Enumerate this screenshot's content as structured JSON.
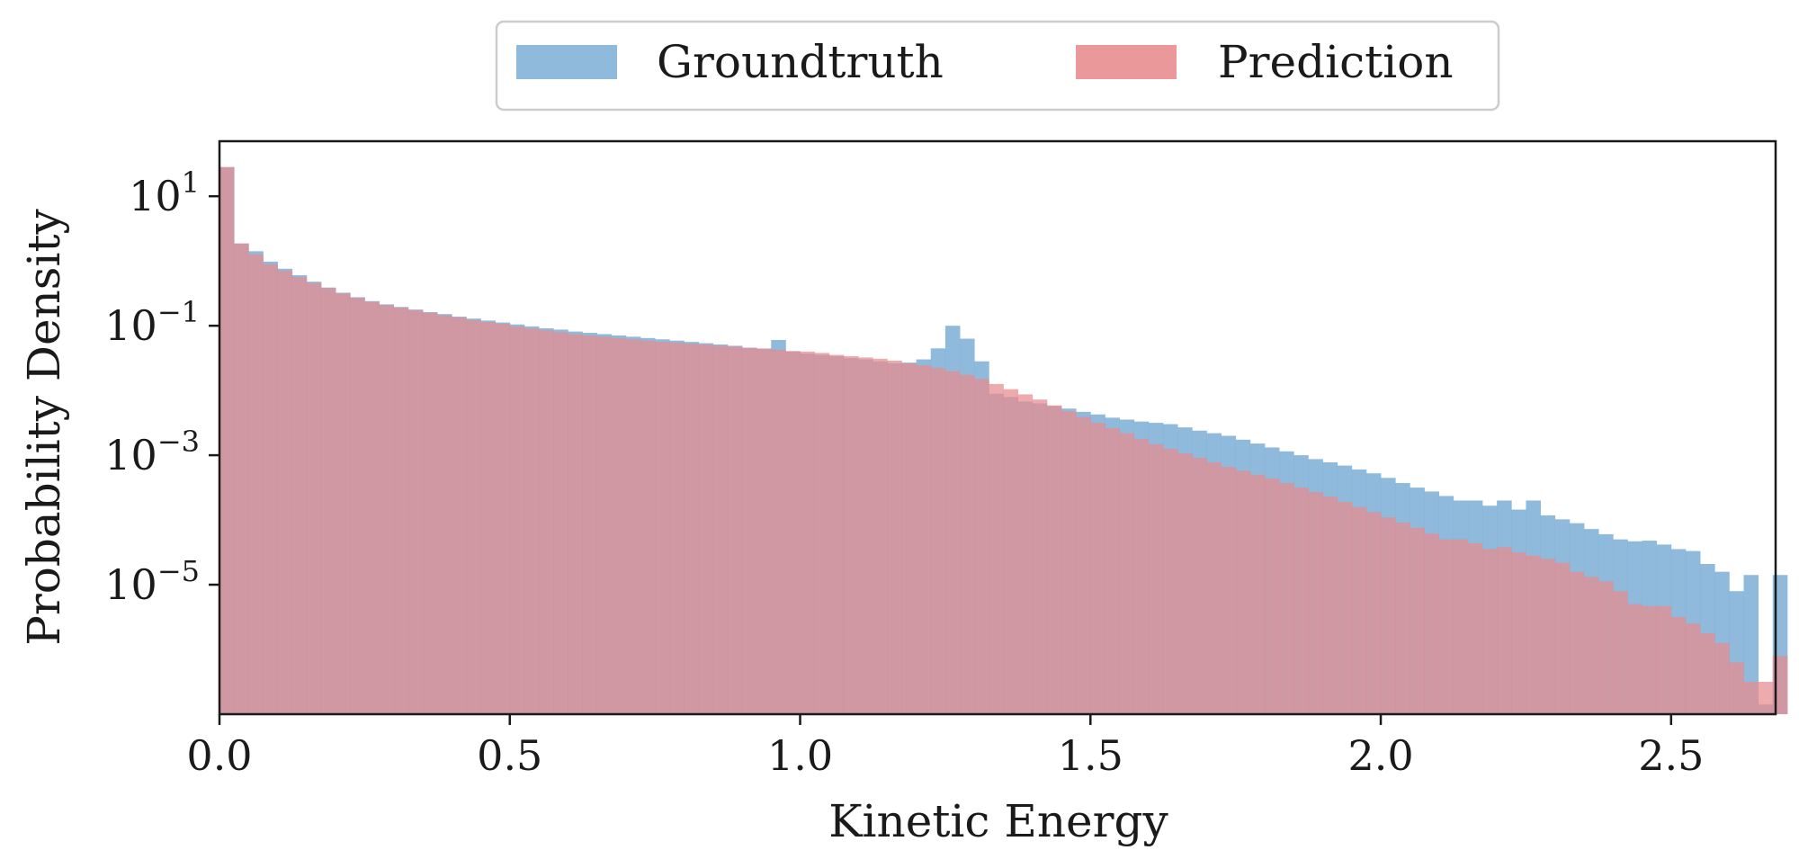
{
  "chart_data": {
    "type": "bar",
    "histogram": true,
    "x_start": 0.0,
    "bin_width": 0.025,
    "xlabel": "Kinetic Energy",
    "ylabel": "Probability Density",
    "xlim": [
      0.0,
      2.68
    ],
    "ylim_log10": [
      -7.0,
      1.85
    ],
    "yscale": "log",
    "x_ticks": [
      {
        "value": 0.0,
        "label": "0.0"
      },
      {
        "value": 0.5,
        "label": "0.5"
      },
      {
        "value": 1.0,
        "label": "1.0"
      },
      {
        "value": 1.5,
        "label": "1.5"
      },
      {
        "value": 2.0,
        "label": "2.0"
      },
      {
        "value": 2.5,
        "label": "2.5"
      }
    ],
    "y_ticks": [
      {
        "log10": 1,
        "base": "10",
        "exp": "1"
      },
      {
        "log10": -1,
        "base": "10",
        "exp": "−1"
      },
      {
        "log10": -3,
        "base": "10",
        "exp": "−3"
      },
      {
        "log10": -5,
        "base": "10",
        "exp": "−5"
      }
    ],
    "grid": false,
    "legend_position": "top-center",
    "series": [
      {
        "name": "Groundtruth",
        "color": "#7fb1d6",
        "opacity": 0.88,
        "log10_values": [
          1.45,
          0.27,
          0.15,
          -0.01,
          -0.12,
          -0.22,
          -0.32,
          -0.41,
          -0.49,
          -0.56,
          -0.62,
          -0.67,
          -0.71,
          -0.75,
          -0.79,
          -0.82,
          -0.86,
          -0.89,
          -0.92,
          -0.95,
          -0.98,
          -1.01,
          -1.04,
          -1.06,
          -1.09,
          -1.11,
          -1.13,
          -1.15,
          -1.17,
          -1.19,
          -1.21,
          -1.23,
          -1.25,
          -1.27,
          -1.29,
          -1.31,
          -1.34,
          -1.36,
          -1.22,
          -1.4,
          -1.43,
          -1.45,
          -1.47,
          -1.5,
          -1.52,
          -1.55,
          -1.58,
          -1.57,
          -1.52,
          -1.35,
          -1.0,
          -1.2,
          -1.55,
          -2.05,
          -2.1,
          -2.17,
          -2.2,
          -2.24,
          -2.28,
          -2.33,
          -2.37,
          -2.42,
          -2.45,
          -2.48,
          -2.5,
          -2.52,
          -2.57,
          -2.62,
          -2.66,
          -2.7,
          -2.76,
          -2.82,
          -2.88,
          -2.94,
          -3.0,
          -3.06,
          -3.11,
          -3.16,
          -3.22,
          -3.28,
          -3.35,
          -3.43,
          -3.5,
          -3.56,
          -3.63,
          -3.7,
          -3.7,
          -3.78,
          -3.7,
          -3.84,
          -3.7,
          -3.93,
          -3.99,
          -4.05,
          -4.14,
          -4.22,
          -4.3,
          -4.33,
          -4.32,
          -4.38,
          -4.45,
          -4.48,
          -4.68,
          -4.8,
          -5.1,
          -4.85,
          -6.85,
          -4.85
        ],
        "coverage_upto": 2.56
      },
      {
        "name": "Prediction",
        "color": "#e88a8d",
        "opacity": 0.88,
        "log10_values": [
          1.45,
          0.27,
          0.1,
          -0.05,
          -0.15,
          -0.25,
          -0.34,
          -0.42,
          -0.5,
          -0.57,
          -0.63,
          -0.68,
          -0.72,
          -0.76,
          -0.8,
          -0.84,
          -0.87,
          -0.91,
          -0.94,
          -0.97,
          -1.01,
          -1.04,
          -1.07,
          -1.1,
          -1.13,
          -1.15,
          -1.17,
          -1.19,
          -1.21,
          -1.23,
          -1.25,
          -1.26,
          -1.28,
          -1.29,
          -1.31,
          -1.32,
          -1.34,
          -1.35,
          -1.37,
          -1.39,
          -1.4,
          -1.42,
          -1.45,
          -1.47,
          -1.49,
          -1.51,
          -1.54,
          -1.58,
          -1.61,
          -1.65,
          -1.7,
          -1.76,
          -1.82,
          -1.9,
          -1.98,
          -2.06,
          -2.14,
          -2.23,
          -2.32,
          -2.41,
          -2.5,
          -2.58,
          -2.66,
          -2.75,
          -2.83,
          -2.9,
          -2.97,
          -3.04,
          -3.11,
          -3.18,
          -3.24,
          -3.3,
          -3.36,
          -3.43,
          -3.5,
          -3.57,
          -3.64,
          -3.72,
          -3.8,
          -3.88,
          -3.96,
          -4.04,
          -4.12,
          -4.21,
          -4.3,
          -4.3,
          -4.36,
          -4.45,
          -4.42,
          -4.5,
          -4.55,
          -4.6,
          -4.66,
          -4.8,
          -4.88,
          -4.95,
          -5.1,
          -5.3,
          -5.33,
          -5.33,
          -5.5,
          -5.6,
          -5.75,
          -5.9,
          -6.2,
          -6.5,
          -6.5,
          -6.1
        ],
        "coverage_upto": 2.525
      }
    ]
  }
}
